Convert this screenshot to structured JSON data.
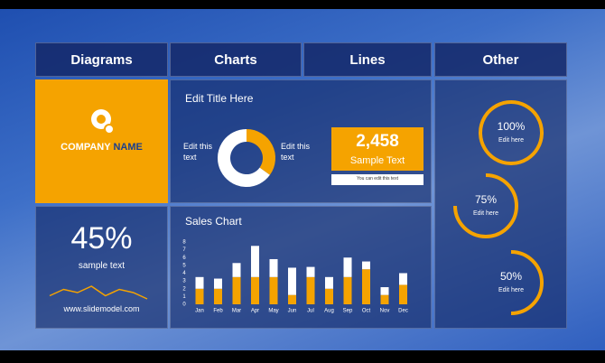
{
  "tabs": [
    "Diagrams",
    "Charts",
    "Lines",
    "Other"
  ],
  "company": {
    "first": "COMPANY",
    "second": "NAME"
  },
  "stat": {
    "value": 45,
    "value_label": "45%",
    "caption": "sample text",
    "url": "www.slidemodel.com",
    "sparkline": [
      2,
      4,
      3,
      5,
      2,
      4,
      3,
      1
    ]
  },
  "donut": {
    "title": "Edit Title Here",
    "left_text": "Edit this text",
    "right_text": "Edit this text",
    "values": [
      35,
      65
    ],
    "colors": [
      "#f5a300",
      "#ffffff"
    ]
  },
  "callout": {
    "value": "2,458",
    "caption": "Sample Text",
    "note": "You can edit this text"
  },
  "sales_chart": {
    "type": "bar",
    "title": "Sales Chart",
    "categories": [
      "Jan",
      "Feb",
      "Mar",
      "Apr",
      "May",
      "Jun",
      "Jul",
      "Aug",
      "Sep",
      "Oct",
      "Nov",
      "Dec"
    ],
    "series": [
      {
        "color": "#f5a300",
        "values": [
          2,
          2,
          3.5,
          3.5,
          3.5,
          1.2,
          3.5,
          2,
          3.5,
          4.5,
          1.2,
          2.5
        ]
      },
      {
        "color": "#ffffff",
        "values": [
          1.5,
          1.3,
          1.8,
          4,
          2.3,
          3.5,
          1.3,
          1.5,
          2.5,
          1,
          1,
          1.5
        ]
      }
    ],
    "ylim": [
      0,
      8
    ],
    "yticks": [
      0,
      1,
      2,
      3,
      4,
      5,
      6,
      7,
      8
    ]
  },
  "rings": [
    {
      "value": 100,
      "label": "100%",
      "caption": "Edit here"
    },
    {
      "value": 75,
      "label": "75%",
      "caption": "Edit here"
    },
    {
      "value": 50,
      "label": "50%",
      "caption": "Edit here"
    }
  ],
  "ring_color": "#f5a300"
}
